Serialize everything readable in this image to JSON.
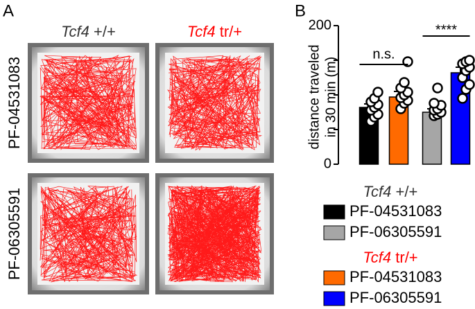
{
  "panel_a": {
    "label": "A",
    "columns": [
      {
        "gene": "Tcf4",
        "genotype": "+/+",
        "color": "#333333"
      },
      {
        "gene": "Tcf4",
        "genotype": "tr/+",
        "color": "#ff0000"
      }
    ],
    "rows": [
      "PF-04531083",
      "PF-06305591"
    ]
  },
  "chart_data": {
    "type": "bar",
    "panel_label": "B",
    "ylabel": [
      "distance traveled",
      "in 30 min (m)"
    ],
    "ylim": [
      0,
      200
    ],
    "yticks": [
      0,
      200
    ],
    "minor_yticks": [
      50,
      100,
      150
    ],
    "series": [
      {
        "name": "PF-04531083",
        "color": "#000000",
        "values": [
          82
        ],
        "errors": [
          5
        ],
        "points": [
          62,
          68,
          72,
          78,
          82,
          86,
          90,
          95,
          104
        ]
      },
      {
        "name": "PF-04531083",
        "color": "#ff6a00",
        "values": [
          97
        ],
        "errors": [
          8
        ],
        "points": [
          80,
          88,
          92,
          96,
          100,
          104,
          110,
          118,
          148
        ]
      },
      {
        "name": "PF-06305591",
        "color": "#a6a6a6",
        "values": [
          75
        ],
        "errors": [
          5
        ],
        "points": [
          70,
          72,
          75,
          78,
          80,
          85,
          88,
          110
        ]
      },
      {
        "name": "PF-06305591",
        "color": "#0000ff",
        "values": [
          132
        ],
        "errors": [
          8
        ],
        "points": [
          95,
          108,
          115,
          125,
          135,
          140,
          145,
          148,
          150
        ]
      }
    ],
    "annotations": [
      "n.s.",
      "****"
    ],
    "legend_groups": [
      {
        "gene": "Tcf4",
        "genotype": "+/+",
        "color": "#333333",
        "series": [
          0,
          2
        ]
      },
      {
        "gene": "Tcf4",
        "genotype": "tr/+",
        "color": "#ff0000",
        "series": [
          1,
          3
        ]
      }
    ]
  }
}
